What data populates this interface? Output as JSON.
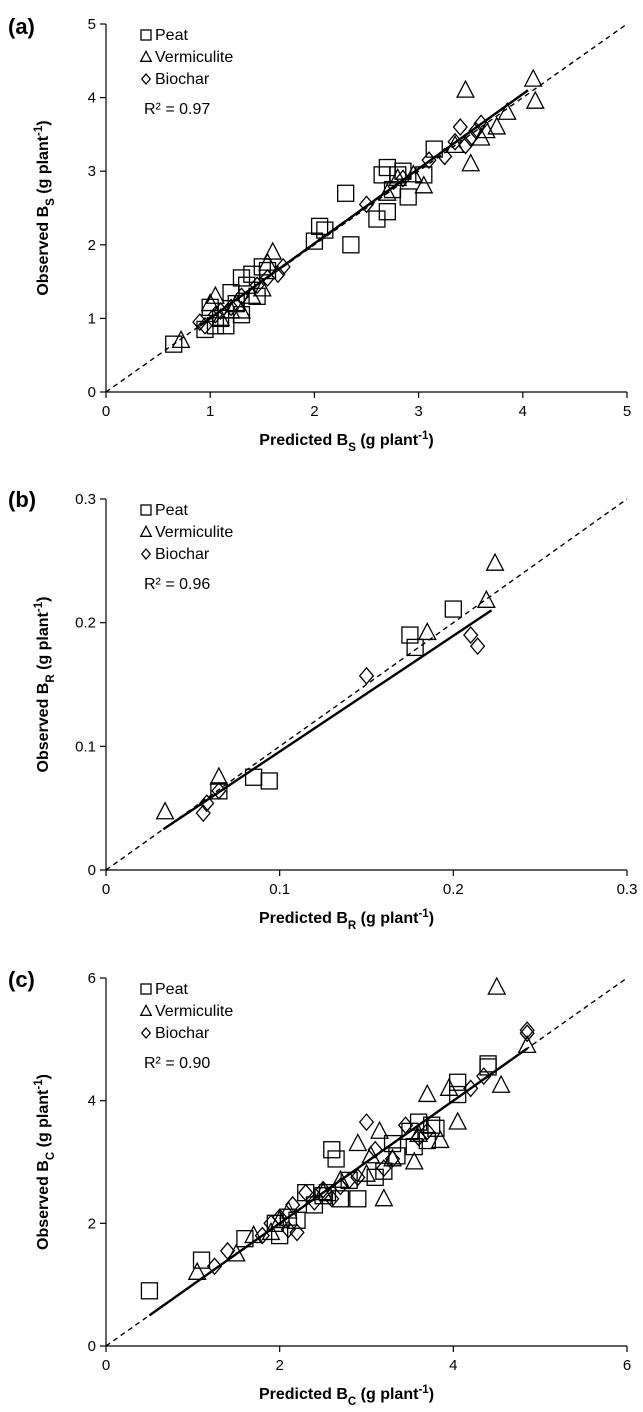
{
  "chart_data": [
    {
      "type": "scatter",
      "panel_label": "(a)",
      "xlabel": {
        "main": "Predicted B",
        "sub": "S",
        "unit_open": " (g plant",
        "sup": "-1",
        "unit_close": ")"
      },
      "ylabel": {
        "main": "Observed B",
        "sub": "S",
        "unit_open": " (g plant",
        "sup": "-1",
        "unit_close": ")"
      },
      "xlim": [
        0,
        5
      ],
      "ylim": [
        0,
        5
      ],
      "xticks": [
        "0",
        "1",
        "2",
        "3",
        "4",
        "5"
      ],
      "yticks": [
        "0",
        "1",
        "2",
        "3",
        "4",
        "5"
      ],
      "r2": "R² = 0.97",
      "grid": false,
      "legend_position": "top-left",
      "one_to_one_line": true,
      "fit_line": [
        [
          0.9,
          0.9
        ],
        [
          4.05,
          4.1
        ]
      ],
      "series": [
        {
          "name": "Peat",
          "marker": "square",
          "x": [
            0.65,
            0.95,
            1.0,
            1.05,
            1.1,
            1.15,
            1.2,
            1.25,
            1.3,
            1.3,
            1.35,
            1.4,
            1.45,
            1.5,
            1.55,
            2.0,
            2.05,
            2.1,
            2.3,
            2.35,
            2.6,
            2.65,
            2.7,
            2.7,
            2.75,
            2.8,
            2.85,
            2.9,
            3.05,
            3.15
          ],
          "y": [
            0.65,
            0.85,
            1.15,
            0.9,
            1.0,
            0.9,
            1.35,
            1.2,
            1.55,
            1.05,
            1.45,
            1.6,
            1.3,
            1.7,
            1.65,
            2.05,
            2.25,
            2.2,
            2.7,
            2.0,
            2.35,
            2.95,
            2.45,
            3.05,
            2.75,
            2.95,
            3.0,
            2.65,
            2.95,
            3.3
          ]
        },
        {
          "name": "Vermiculite",
          "marker": "triangle",
          "x": [
            0.72,
            1.0,
            1.05,
            1.1,
            1.2,
            1.25,
            1.3,
            1.4,
            1.5,
            1.55,
            1.6,
            2.7,
            2.8,
            2.95,
            3.05,
            3.35,
            3.45,
            3.5,
            3.6,
            3.65,
            3.75,
            3.85,
            4.1,
            4.12
          ],
          "y": [
            0.7,
            1.2,
            1.3,
            1.0,
            1.1,
            1.2,
            1.1,
            1.3,
            1.4,
            1.75,
            1.9,
            2.7,
            2.9,
            2.95,
            2.8,
            3.35,
            4.1,
            3.1,
            3.45,
            3.55,
            3.6,
            3.8,
            4.25,
            3.95
          ],
          "r": [
            9,
            9,
            9,
            9,
            9,
            9,
            9,
            9,
            9,
            9,
            9,
            9,
            9,
            9,
            9,
            9,
            9,
            9,
            9,
            9,
            9,
            9,
            9,
            9
          ]
        },
        {
          "name": "Biochar",
          "marker": "diamond",
          "x": [
            0.9,
            0.95,
            1.05,
            1.1,
            1.2,
            1.3,
            1.45,
            1.55,
            1.65,
            1.7,
            2.5,
            2.85,
            3.1,
            3.25,
            3.35,
            3.4,
            3.45,
            3.5,
            3.55,
            3.6
          ],
          "y": [
            0.95,
            0.9,
            1.05,
            1.1,
            1.15,
            1.3,
            1.45,
            1.55,
            1.6,
            1.7,
            2.55,
            2.9,
            3.15,
            3.2,
            3.4,
            3.6,
            3.35,
            3.45,
            3.55,
            3.65
          ]
        }
      ]
    },
    {
      "type": "scatter",
      "panel_label": "(b)",
      "xlabel": {
        "main": "Predicted B",
        "sub": "R",
        "unit_open": " (g plant",
        "sup": "-1",
        "unit_close": ")"
      },
      "ylabel": {
        "main": "Observed B",
        "sub": "R",
        "unit_open": " (g plant",
        "sup": "-1",
        "unit_close": ")"
      },
      "xlim": [
        0,
        0.3
      ],
      "ylim": [
        0,
        0.3
      ],
      "xticks": [
        "0",
        "0.1",
        "0.2",
        "0.3"
      ],
      "yticks": [
        "0",
        "0.1",
        "0.2",
        "0.3"
      ],
      "r2": "R² = 0.96",
      "grid": false,
      "legend_position": "top-left",
      "one_to_one_line": true,
      "fit_line": [
        [
          0.033,
          0.033
        ],
        [
          0.222,
          0.21
        ]
      ],
      "series": [
        {
          "name": "Peat",
          "marker": "square",
          "x": [
            0.065,
            0.085,
            0.094,
            0.175,
            0.178,
            0.2
          ],
          "y": [
            0.064,
            0.075,
            0.072,
            0.19,
            0.18,
            0.211
          ]
        },
        {
          "name": "Vermiculite",
          "marker": "triangle",
          "x": [
            0.034,
            0.065,
            0.185,
            0.219,
            0.224
          ],
          "y": [
            0.047,
            0.075,
            0.192,
            0.218,
            0.248
          ]
        },
        {
          "name": "Biochar",
          "marker": "diamond",
          "x": [
            0.056,
            0.058,
            0.065,
            0.15,
            0.21,
            0.214
          ],
          "y": [
            0.046,
            0.054,
            0.064,
            0.157,
            0.19,
            0.181
          ]
        }
      ]
    },
    {
      "type": "scatter",
      "panel_label": "(c)",
      "xlabel": {
        "main": "Predicted B",
        "sub": "C",
        "unit_open": " (g plant",
        "sup": "-1",
        "unit_close": ")"
      },
      "ylabel": {
        "main": "Observed B",
        "sub": "C",
        "unit_open": " (g plant",
        "sup": "-1",
        "unit_close": ")"
      },
      "xlim": [
        0,
        6
      ],
      "ylim": [
        0,
        6
      ],
      "xticks": [
        "0",
        "2",
        "4",
        "6"
      ],
      "yticks": [
        "0",
        "2",
        "4",
        "6"
      ],
      "r2": "R² = 0.90",
      "grid": false,
      "legend_position": "top-left",
      "one_to_one_line": true,
      "fit_line": [
        [
          0.5,
          0.5
        ],
        [
          4.85,
          4.85
        ]
      ],
      "series": [
        {
          "name": "Peat",
          "marker": "square",
          "x": [
            0.5,
            1.1,
            1.6,
            1.95,
            2.0,
            2.1,
            2.2,
            2.3,
            2.4,
            2.5,
            2.55,
            2.6,
            2.65,
            2.7,
            2.8,
            2.9,
            3.1,
            3.2,
            3.3,
            3.35,
            3.5,
            3.55,
            3.6,
            3.7,
            3.75,
            3.8,
            4.05,
            4.05,
            4.4,
            4.4
          ],
          "y": [
            0.9,
            1.4,
            1.75,
            2.0,
            1.8,
            2.1,
            2.05,
            2.5,
            2.3,
            2.45,
            2.5,
            3.2,
            3.05,
            2.4,
            2.7,
            2.4,
            2.75,
            2.85,
            3.3,
            3.1,
            3.5,
            3.25,
            3.65,
            3.35,
            3.6,
            3.55,
            4.1,
            4.3,
            4.6,
            4.55
          ]
        },
        {
          "name": "Vermiculite",
          "marker": "triangle",
          "x": [
            1.05,
            1.5,
            1.7,
            1.9,
            2.0,
            2.1,
            2.5,
            2.7,
            2.9,
            3.0,
            3.05,
            3.15,
            3.2,
            3.3,
            3.55,
            3.6,
            3.7,
            3.85,
            3.95,
            4.05,
            4.5,
            4.55,
            4.85
          ],
          "y": [
            1.2,
            1.5,
            1.8,
            1.85,
            2.05,
            2.2,
            2.5,
            2.7,
            3.3,
            2.8,
            3.1,
            3.5,
            2.4,
            3.05,
            3.0,
            3.45,
            4.1,
            3.35,
            4.2,
            3.65,
            5.85,
            4.25,
            4.9
          ]
        },
        {
          "name": "Biochar",
          "marker": "diamond",
          "x": [
            1.25,
            1.4,
            1.8,
            1.9,
            2.0,
            2.1,
            2.15,
            2.2,
            2.3,
            2.4,
            2.5,
            2.6,
            2.7,
            2.8,
            2.9,
            3.0,
            3.1,
            3.2,
            3.3,
            3.45,
            3.6,
            3.7,
            4.2,
            4.35,
            4.85,
            4.85
          ],
          "y": [
            1.3,
            1.55,
            1.8,
            2.0,
            2.1,
            1.9,
            2.3,
            1.85,
            2.5,
            2.35,
            2.55,
            2.4,
            2.6,
            2.7,
            2.75,
            3.65,
            3.2,
            2.9,
            3.05,
            3.6,
            3.4,
            3.5,
            4.2,
            4.4,
            5.1,
            5.15
          ]
        }
      ]
    }
  ]
}
